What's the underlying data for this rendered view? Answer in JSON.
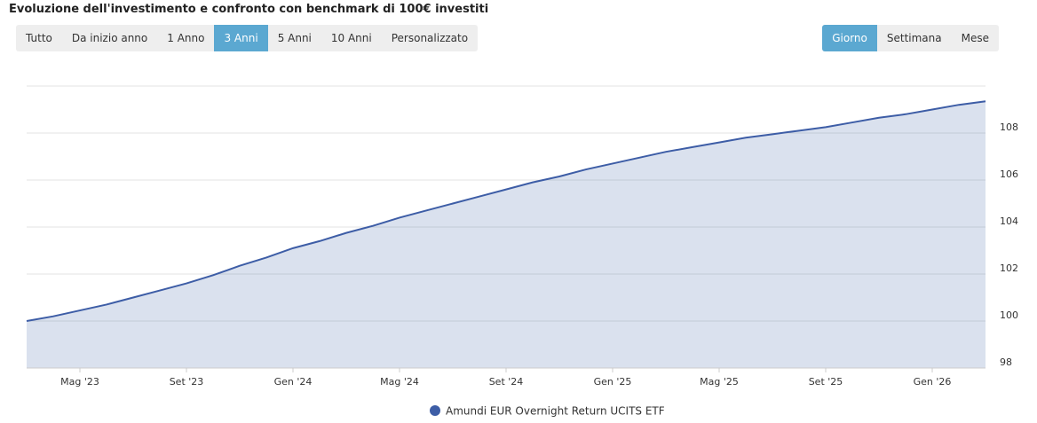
{
  "title": "Evoluzione dell'investimento e confronto con benchmark di 100€ investiti",
  "range_buttons": [
    "Tutto",
    "Da inizio anno",
    "1 Anno",
    "3 Anni",
    "5 Anni",
    "10 Anni",
    "Personalizzato"
  ],
  "active_range": 3,
  "interval_buttons": [
    "Giorno",
    "Settimana",
    "Mese"
  ],
  "active_interval": 0,
  "chart_data": {
    "type": "area",
    "x": [
      "2023-03",
      "2023-04",
      "2023-05",
      "2023-06",
      "2023-07",
      "2023-08",
      "2023-09",
      "2023-10",
      "2023-11",
      "2023-12",
      "2024-01",
      "2024-02",
      "2024-03",
      "2024-04",
      "2024-05",
      "2024-06",
      "2024-07",
      "2024-08",
      "2024-09",
      "2024-10",
      "2024-11",
      "2024-12",
      "2025-01",
      "2025-02",
      "2025-03",
      "2025-04",
      "2025-05",
      "2025-06",
      "2025-07",
      "2025-08",
      "2025-09",
      "2025-10",
      "2025-11",
      "2025-12",
      "2026-01",
      "2026-02",
      "2026-03"
    ],
    "series": [
      {
        "name": "Amundi EUR Overnight Return UCITS ETF",
        "color": "#3d5da6",
        "values": [
          100.0,
          100.2,
          100.45,
          100.7,
          101.0,
          101.3,
          101.6,
          101.95,
          102.35,
          102.7,
          103.1,
          103.4,
          103.75,
          104.05,
          104.4,
          104.7,
          105.0,
          105.3,
          105.6,
          105.9,
          106.15,
          106.45,
          106.7,
          106.95,
          107.2,
          107.4,
          107.6,
          107.8,
          107.95,
          108.1,
          108.25,
          108.45,
          108.65,
          108.8,
          109.0,
          109.2,
          109.35
        ]
      }
    ],
    "xlim": [
      "2023-03",
      "2026-03"
    ],
    "xticks": [
      {
        "value": "2023-05",
        "label": "Mag '23"
      },
      {
        "value": "2023-09",
        "label": "Set '23"
      },
      {
        "value": "2024-01",
        "label": "Gen '24"
      },
      {
        "value": "2024-05",
        "label": "Mag '24"
      },
      {
        "value": "2024-09",
        "label": "Set '24"
      },
      {
        "value": "2025-01",
        "label": "Gen '25"
      },
      {
        "value": "2025-05",
        "label": "Mag '25"
      },
      {
        "value": "2025-09",
        "label": "Set '25"
      },
      {
        "value": "2026-01",
        "label": "Gen '26"
      }
    ],
    "ylim": [
      98,
      110
    ],
    "yticks": [
      98,
      100,
      102,
      104,
      106,
      108
    ],
    "grid": true,
    "legend": "bottom"
  }
}
